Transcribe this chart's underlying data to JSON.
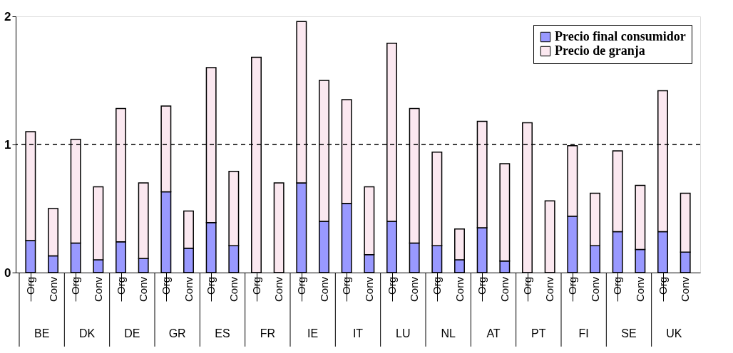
{
  "chart_data": {
    "type": "bar",
    "stacked": true,
    "categories": [
      "Org",
      "Conv",
      "Org",
      "Conv",
      "Org",
      "Conv",
      "Org",
      "Conv",
      "Org",
      "Conv",
      "Org",
      "Conv",
      "Org",
      "Conv",
      "Org",
      "Conv",
      "Org",
      "Conv",
      "Org",
      "Conv",
      "Org",
      "Conv",
      "Org",
      "Conv",
      "Org",
      "Conv",
      "Org",
      "Conv",
      "Org",
      "Conv"
    ],
    "series": [
      {
        "name": "Precio final consumidor",
        "color": "#9999ff",
        "values": [
          0.25,
          0.13,
          0.23,
          0.1,
          0.24,
          0.11,
          0.63,
          0.19,
          0.39,
          0.21,
          null,
          null,
          0.7,
          0.4,
          0.54,
          0.14,
          0.4,
          0.23,
          0.21,
          0.1,
          0.35,
          0.09,
          null,
          null,
          0.44,
          0.21,
          0.32,
          0.18,
          0.32,
          0.16
        ]
      },
      {
        "name": "Precio de granja",
        "color": "#fbe8f0",
        "values": [
          0.85,
          0.37,
          0.81,
          0.57,
          1.04,
          0.59,
          0.67,
          0.29,
          1.21,
          0.58,
          1.68,
          0.7,
          1.26,
          1.1,
          0.81,
          0.53,
          1.39,
          1.05,
          0.73,
          0.24,
          0.83,
          0.76,
          1.17,
          0.56,
          0.55,
          0.41,
          0.63,
          0.5,
          1.1,
          0.46
        ]
      }
    ],
    "ylim": [
      0,
      2
    ],
    "yticks": [
      0,
      1,
      2
    ],
    "grid": false,
    "legend": "top right",
    "ref_lines": [
      {
        "axis": "y",
        "value": 1,
        "line_style": "dashed",
        "color": "#000000"
      }
    ],
    "annotations": [
      "BE",
      "DK",
      "DE",
      "GR",
      "ES",
      "FR",
      "IE",
      "IT",
      "LU",
      "NL",
      "AT",
      "PT",
      "FI",
      "SE",
      "UK"
    ]
  }
}
